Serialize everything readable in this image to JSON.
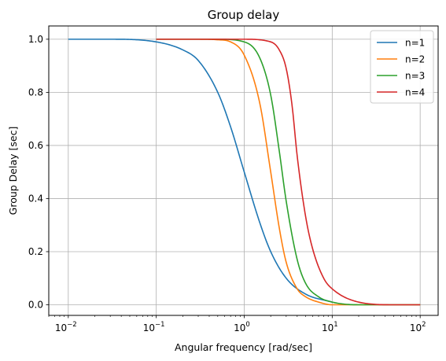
{
  "chart_data": {
    "type": "line",
    "title": "Group delay",
    "xlabel": "Angular frequency [rad/sec]",
    "ylabel": "Group Delay [sec]",
    "xscale": "log",
    "xlim": [
      0.006,
      160
    ],
    "ylim": [
      -0.04,
      1.05
    ],
    "x_ticks": [
      0.01,
      0.1,
      1,
      10,
      100
    ],
    "x_tick_labels": [
      {
        "base": "10",
        "exp": "−2"
      },
      {
        "base": "10",
        "exp": "−1"
      },
      {
        "base": "10",
        "exp": "0"
      },
      {
        "base": "10",
        "exp": "1"
      },
      {
        "base": "10",
        "exp": "2"
      }
    ],
    "y_ticks": [
      0.0,
      0.2,
      0.4,
      0.6,
      0.8,
      1.0
    ],
    "y_tick_labels": [
      "0.0",
      "0.2",
      "0.4",
      "0.6",
      "0.8",
      "1.0"
    ],
    "grid": true,
    "legend_position": "top-right",
    "series": [
      {
        "name": "n=1",
        "color": "#1f77b4",
        "x_range": [
          0.01,
          10
        ],
        "x": [
          0.01,
          0.03,
          0.1,
          0.2,
          0.3,
          0.5,
          0.7,
          1,
          1.5,
          2,
          3,
          5,
          10
        ],
        "y": [
          1.0,
          1.0,
          0.99,
          0.96,
          0.92,
          0.8,
          0.67,
          0.5,
          0.31,
          0.2,
          0.1,
          0.04,
          0.01
        ]
      },
      {
        "name": "n=2",
        "color": "#ff7f0e",
        "x_range": [
          0.1,
          100
        ],
        "x": [
          0.1,
          0.3,
          0.5,
          0.7,
          1,
          1.5,
          2,
          2.5,
          3,
          4,
          5,
          7,
          10,
          20,
          50,
          100
        ],
        "y": [
          1.0,
          1.0,
          0.998,
          0.99,
          0.94,
          0.76,
          0.5,
          0.29,
          0.16,
          0.06,
          0.03,
          0.01,
          0.0,
          0.0,
          0.0,
          0.0
        ]
      },
      {
        "name": "n=3",
        "color": "#2ca02c",
        "x_range": [
          0.1,
          100
        ],
        "x": [
          0.1,
          0.5,
          1,
          1.5,
          2,
          2.5,
          3,
          4,
          5,
          7,
          10,
          20,
          50,
          100
        ],
        "y": [
          1.0,
          1.0,
          0.99,
          0.93,
          0.79,
          0.58,
          0.39,
          0.17,
          0.08,
          0.03,
          0.01,
          0.0,
          0.0,
          0.0
        ]
      },
      {
        "name": "n=4",
        "color": "#d62728",
        "x_range": [
          0.1,
          100
        ],
        "x": [
          0.1,
          1,
          2,
          2.5,
          3,
          3.5,
          4,
          5,
          6,
          8,
          10,
          20,
          50,
          100
        ],
        "y": [
          1.0,
          1.0,
          0.99,
          0.96,
          0.89,
          0.75,
          0.56,
          0.33,
          0.21,
          0.1,
          0.06,
          0.01,
          0.0,
          0.0
        ]
      }
    ]
  }
}
